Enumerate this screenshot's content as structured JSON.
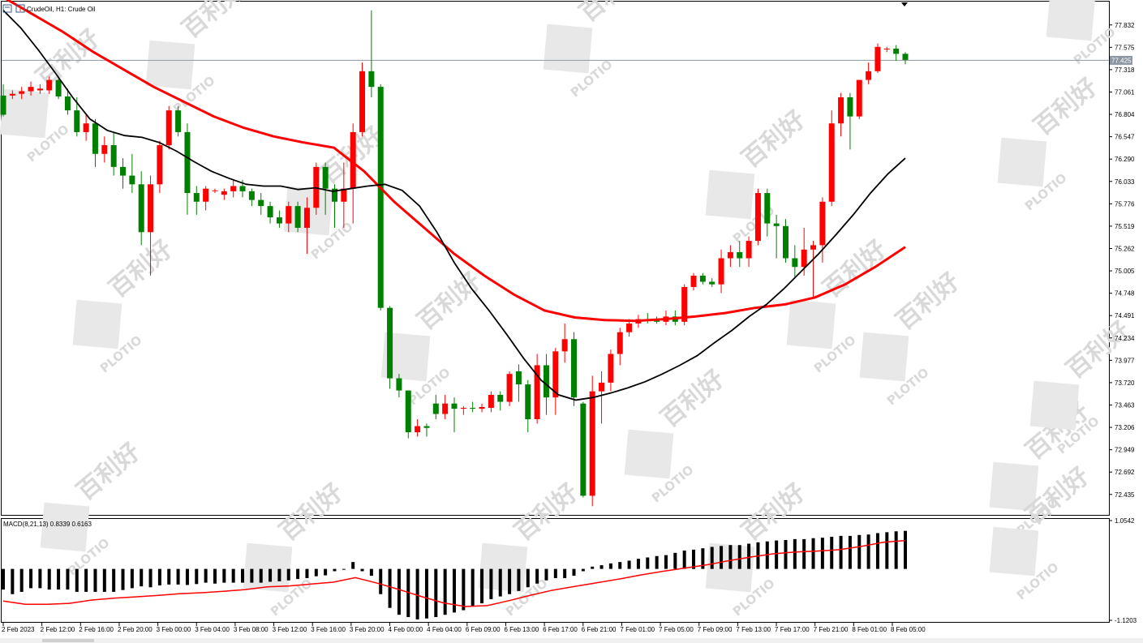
{
  "window": {
    "symbol_label": "CrudeOil, H1:  Crude Oil",
    "indicator_label": "MACD(8,21,13) 0.8339 0.6163"
  },
  "watermark": {
    "logo_text": "PLOTIO",
    "cn_text": "百利好"
  },
  "colors": {
    "bull": "#ff0000",
    "bear": "#008000",
    "ma_fast": "#000000",
    "ma_slow": "#ff0000",
    "macd_hist": "#000000",
    "macd_signal": "#ff0000",
    "grid_line": "#8c97a3"
  },
  "chart_data": [
    {
      "type": "candlestick",
      "title": "CrudeOil, H1: Crude Oil",
      "ylim": [
        72.2,
        78.1
      ],
      "y_ticks": [
        "77.832",
        "77.575",
        "77.318",
        "77.061",
        "76.804",
        "76.547",
        "76.290",
        "76.033",
        "75.776",
        "75.519",
        "75.262",
        "75.005",
        "74.748",
        "74.491",
        "74.234",
        "73.977",
        "73.720",
        "73.463",
        "73.206",
        "72.949",
        "72.692",
        "72.435"
      ],
      "current_price": "77.425",
      "x_ticks": [
        "2 Feb 2023",
        "2 Feb 12:00",
        "2 Feb 16:00",
        "2 Feb 20:00",
        "3 Feb 00:00",
        "3 Feb 04:00",
        "3 Feb 08:00",
        "3 Feb 12:00",
        "3 Feb 16:00",
        "3 Feb 20:00",
        "4 Feb 00:00",
        "4 Feb 04:00",
        "6 Feb 09:00",
        "6 Feb 13:00",
        "6 Feb 17:00",
        "6 Feb 21:00",
        "7 Feb 01:00",
        "7 Feb 05:00",
        "7 Feb 09:00",
        "7 Feb 13:00",
        "7 Feb 17:00",
        "7 Feb 21:00",
        "8 Feb 01:00",
        "8 Feb 05:00"
      ],
      "candles": [
        {
          "o": 77.02,
          "h": 77.15,
          "l": 76.78,
          "c": 76.8
        },
        {
          "o": 77.02,
          "h": 77.08,
          "l": 76.98,
          "c": 77.04
        },
        {
          "o": 77.04,
          "h": 77.12,
          "l": 76.98,
          "c": 77.07
        },
        {
          "o": 77.07,
          "h": 77.18,
          "l": 77.02,
          "c": 77.12
        },
        {
          "o": 77.08,
          "h": 77.15,
          "l": 77.04,
          "c": 77.1
        },
        {
          "o": 77.08,
          "h": 77.24,
          "l": 77.04,
          "c": 77.2
        },
        {
          "o": 77.2,
          "h": 77.22,
          "l": 76.98,
          "c": 77.01
        },
        {
          "o": 77.01,
          "h": 77.1,
          "l": 76.8,
          "c": 76.85
        },
        {
          "o": 76.85,
          "h": 77.0,
          "l": 76.55,
          "c": 76.6
        },
        {
          "o": 76.6,
          "h": 76.8,
          "l": 76.5,
          "c": 76.7
        },
        {
          "o": 76.7,
          "h": 76.75,
          "l": 76.2,
          "c": 76.35
        },
        {
          "o": 76.35,
          "h": 76.55,
          "l": 76.25,
          "c": 76.45
        },
        {
          "o": 76.45,
          "h": 76.6,
          "l": 76.1,
          "c": 76.2
        },
        {
          "o": 76.2,
          "h": 76.3,
          "l": 75.95,
          "c": 76.1
        },
        {
          "o": 76.1,
          "h": 76.35,
          "l": 75.9,
          "c": 76.0
        },
        {
          "o": 76.0,
          "h": 76.15,
          "l": 75.3,
          "c": 75.45
        },
        {
          "o": 75.45,
          "h": 76.1,
          "l": 74.95,
          "c": 76.0
        },
        {
          "o": 76.0,
          "h": 76.5,
          "l": 75.9,
          "c": 76.45
        },
        {
          "o": 76.45,
          "h": 76.9,
          "l": 76.4,
          "c": 76.85
        },
        {
          "o": 76.85,
          "h": 76.9,
          "l": 76.55,
          "c": 76.6
        },
        {
          "o": 76.6,
          "h": 76.7,
          "l": 75.65,
          "c": 75.9
        },
        {
          "o": 75.9,
          "h": 75.98,
          "l": 75.65,
          "c": 75.8
        },
        {
          "o": 75.8,
          "h": 75.98,
          "l": 75.7,
          "c": 75.95
        },
        {
          "o": 75.93,
          "h": 75.95,
          "l": 75.9,
          "c": 75.93
        },
        {
          "o": 75.88,
          "h": 75.95,
          "l": 75.82,
          "c": 75.92
        },
        {
          "o": 75.92,
          "h": 76.05,
          "l": 75.85,
          "c": 75.98
        },
        {
          "o": 75.98,
          "h": 76.05,
          "l": 75.85,
          "c": 75.92
        },
        {
          "o": 75.92,
          "h": 75.95,
          "l": 75.75,
          "c": 75.82
        },
        {
          "o": 75.82,
          "h": 75.9,
          "l": 75.65,
          "c": 75.75
        },
        {
          "o": 75.75,
          "h": 75.8,
          "l": 75.55,
          "c": 75.62
        },
        {
          "o": 75.62,
          "h": 75.7,
          "l": 75.5,
          "c": 75.55
        },
        {
          "o": 75.55,
          "h": 75.8,
          "l": 75.45,
          "c": 75.75
        },
        {
          "o": 75.75,
          "h": 75.8,
          "l": 75.45,
          "c": 75.5
        },
        {
          "o": 75.5,
          "h": 75.85,
          "l": 75.2,
          "c": 75.73
        },
        {
          "o": 75.73,
          "h": 76.25,
          "l": 75.65,
          "c": 76.2
        },
        {
          "o": 76.2,
          "h": 76.25,
          "l": 75.65,
          "c": 75.95
        },
        {
          "o": 75.95,
          "h": 76.0,
          "l": 75.5,
          "c": 75.8
        },
        {
          "o": 75.8,
          "h": 76.25,
          "l": 75.5,
          "c": 75.95
        },
        {
          "o": 75.95,
          "h": 76.7,
          "l": 75.55,
          "c": 76.6
        },
        {
          "o": 76.6,
          "h": 77.4,
          "l": 76.55,
          "c": 77.3
        },
        {
          "o": 77.3,
          "h": 78.0,
          "l": 77.0,
          "c": 77.12
        },
        {
          "o": 77.12,
          "h": 77.15,
          "l": 74.55,
          "c": 74.58
        },
        {
          "o": 74.58,
          "h": 74.6,
          "l": 73.65,
          "c": 73.77
        },
        {
          "o": 73.77,
          "h": 73.82,
          "l": 73.55,
          "c": 73.63
        },
        {
          "o": 73.63,
          "h": 73.63,
          "l": 73.08,
          "c": 73.15
        },
        {
          "o": 73.15,
          "h": 73.3,
          "l": 73.1,
          "c": 73.22
        },
        {
          "o": 73.22,
          "h": 73.25,
          "l": 73.1,
          "c": 73.2
        },
        {
          "o": 73.48,
          "h": 73.58,
          "l": 73.3,
          "c": 73.36
        },
        {
          "o": 73.36,
          "h": 73.58,
          "l": 73.3,
          "c": 73.48
        },
        {
          "o": 73.48,
          "h": 73.55,
          "l": 73.15,
          "c": 73.42
        },
        {
          "o": 73.42,
          "h": 73.45,
          "l": 73.35,
          "c": 73.43
        },
        {
          "o": 73.43,
          "h": 73.5,
          "l": 73.38,
          "c": 73.42
        },
        {
          "o": 73.42,
          "h": 73.48,
          "l": 73.38,
          "c": 73.44
        },
        {
          "o": 73.43,
          "h": 73.62,
          "l": 73.38,
          "c": 73.58
        },
        {
          "o": 73.58,
          "h": 73.62,
          "l": 73.4,
          "c": 73.5
        },
        {
          "o": 73.5,
          "h": 73.85,
          "l": 73.45,
          "c": 73.82
        },
        {
          "o": 73.85,
          "h": 73.93,
          "l": 73.5,
          "c": 73.7
        },
        {
          "o": 73.7,
          "h": 73.75,
          "l": 73.15,
          "c": 73.3
        },
        {
          "o": 73.3,
          "h": 74.05,
          "l": 73.25,
          "c": 73.92
        },
        {
          "o": 73.92,
          "h": 74.05,
          "l": 73.35,
          "c": 73.55
        },
        {
          "o": 73.55,
          "h": 74.12,
          "l": 73.35,
          "c": 74.08
        },
        {
          "o": 74.08,
          "h": 74.4,
          "l": 73.95,
          "c": 74.22
        },
        {
          "o": 74.22,
          "h": 74.3,
          "l": 73.45,
          "c": 73.55
        },
        {
          "o": 73.48,
          "h": 73.5,
          "l": 72.4,
          "c": 72.42
        },
        {
          "o": 72.42,
          "h": 73.8,
          "l": 72.3,
          "c": 73.62
        },
        {
          "o": 73.62,
          "h": 73.85,
          "l": 73.25,
          "c": 73.72
        },
        {
          "o": 73.72,
          "h": 74.1,
          "l": 73.62,
          "c": 74.05
        },
        {
          "o": 74.05,
          "h": 74.35,
          "l": 73.92,
          "c": 74.3
        },
        {
          "o": 74.3,
          "h": 74.45,
          "l": 74.25,
          "c": 74.4
        },
        {
          "o": 74.4,
          "h": 74.5,
          "l": 74.35,
          "c": 74.45
        },
        {
          "o": 74.45,
          "h": 74.52,
          "l": 74.4,
          "c": 74.44
        },
        {
          "o": 74.44,
          "h": 74.48,
          "l": 74.4,
          "c": 74.42
        },
        {
          "o": 74.42,
          "h": 74.55,
          "l": 74.38,
          "c": 74.48
        },
        {
          "o": 74.48,
          "h": 74.55,
          "l": 74.38,
          "c": 74.42
        },
        {
          "o": 74.42,
          "h": 74.85,
          "l": 74.38,
          "c": 74.82
        },
        {
          "o": 74.82,
          "h": 74.98,
          "l": 74.78,
          "c": 74.95
        },
        {
          "o": 74.95,
          "h": 74.98,
          "l": 74.85,
          "c": 74.88
        },
        {
          "o": 74.88,
          "h": 74.92,
          "l": 74.82,
          "c": 74.85
        },
        {
          "o": 74.85,
          "h": 75.25,
          "l": 74.75,
          "c": 75.15
        },
        {
          "o": 75.15,
          "h": 75.3,
          "l": 75.05,
          "c": 75.22
        },
        {
          "o": 75.22,
          "h": 75.35,
          "l": 75.05,
          "c": 75.15
        },
        {
          "o": 75.15,
          "h": 75.4,
          "l": 75.05,
          "c": 75.35
        },
        {
          "o": 75.35,
          "h": 75.95,
          "l": 75.3,
          "c": 75.9
        },
        {
          "o": 75.9,
          "h": 75.95,
          "l": 75.4,
          "c": 75.55
        },
        {
          "o": 75.55,
          "h": 75.65,
          "l": 75.15,
          "c": 75.52
        },
        {
          "o": 75.52,
          "h": 75.6,
          "l": 75.1,
          "c": 75.15
        },
        {
          "o": 75.15,
          "h": 75.3,
          "l": 74.92,
          "c": 75.05
        },
        {
          "o": 75.05,
          "h": 75.5,
          "l": 74.95,
          "c": 75.25
        },
        {
          "o": 75.25,
          "h": 75.35,
          "l": 74.7,
          "c": 75.3
        },
        {
          "o": 75.3,
          "h": 75.85,
          "l": 75.1,
          "c": 75.8
        },
        {
          "o": 75.8,
          "h": 76.85,
          "l": 75.75,
          "c": 76.7
        },
        {
          "o": 76.7,
          "h": 77.05,
          "l": 76.55,
          "c": 77.0
        },
        {
          "o": 77.0,
          "h": 77.05,
          "l": 76.4,
          "c": 76.78
        },
        {
          "o": 76.78,
          "h": 77.2,
          "l": 76.75,
          "c": 77.2
        },
        {
          "o": 77.2,
          "h": 77.4,
          "l": 77.15,
          "c": 77.3
        },
        {
          "o": 77.3,
          "h": 77.62,
          "l": 77.28,
          "c": 77.58
        },
        {
          "o": 77.55,
          "h": 77.58,
          "l": 77.52,
          "c": 77.56
        },
        {
          "o": 77.56,
          "h": 77.6,
          "l": 77.42,
          "c": 77.5
        },
        {
          "o": 77.5,
          "h": 77.52,
          "l": 77.38,
          "c": 77.43
        }
      ],
      "ma_fast": [
        78.0,
        77.8,
        77.55,
        77.28,
        77.0,
        76.75,
        76.62,
        76.56,
        76.54,
        76.48,
        76.38,
        76.26,
        76.15,
        76.07,
        76.0,
        75.98,
        75.98,
        75.94,
        75.96,
        75.92,
        75.95,
        75.98,
        76.0,
        75.93,
        75.75,
        75.45,
        75.1,
        74.8,
        74.55,
        74.28,
        74.0,
        73.75,
        73.58,
        73.52,
        73.55,
        73.6,
        73.66,
        73.73,
        73.82,
        73.92,
        74.03,
        74.18,
        74.32,
        74.48,
        74.62,
        74.8,
        75.0,
        75.2,
        75.42,
        75.65,
        75.9,
        76.12,
        76.3
      ],
      "ma_slow": [
        78.15,
        77.95,
        77.75,
        77.52,
        77.32,
        77.12,
        76.95,
        76.78,
        76.65,
        76.55,
        76.48,
        76.42,
        76.15,
        75.8,
        75.5,
        75.2,
        74.95,
        74.73,
        74.55,
        74.47,
        74.44,
        74.43,
        74.45,
        74.48,
        74.52,
        74.58,
        74.62,
        74.7,
        74.85,
        75.05,
        75.28
      ],
      "macd": {
        "name": "MACD(8,21,13)",
        "main": "0.8339",
        "signal": "0.6163",
        "ylim": [
          -1.1203,
          1.0542
        ],
        "y_ticks": [
          "1.0542",
          "-1.1203"
        ],
        "histogram": [
          -0.45,
          -0.55,
          -0.5,
          -0.42,
          -0.42,
          -0.45,
          -0.45,
          -0.45,
          -0.5,
          -0.5,
          -0.5,
          -0.5,
          -0.5,
          -0.46,
          -0.42,
          -0.38,
          -0.4,
          -0.36,
          -0.34,
          -0.34,
          -0.35,
          -0.33,
          -0.3,
          -0.32,
          -0.3,
          -0.3,
          -0.3,
          -0.3,
          -0.3,
          -0.28,
          -0.27,
          -0.25,
          -0.22,
          -0.2,
          -0.16,
          -0.14,
          -0.05,
          0.0,
          0.15,
          -0.05,
          -0.15,
          -0.55,
          -0.85,
          -1.0,
          -1.05,
          -1.1,
          -1.08,
          -1.05,
          -1.0,
          -0.95,
          -0.9,
          -0.82,
          -0.75,
          -0.66,
          -0.6,
          -0.55,
          -0.48,
          -0.4,
          -0.32,
          -0.25,
          -0.2,
          -0.2,
          -0.15,
          -0.05,
          0.05,
          0.08,
          0.12,
          0.15,
          0.18,
          0.22,
          0.25,
          0.28,
          0.3,
          0.35,
          0.4,
          0.42,
          0.45,
          0.48,
          0.5,
          0.52,
          0.52,
          0.55,
          0.58,
          0.6,
          0.62,
          0.63,
          0.65,
          0.65,
          0.67,
          0.68,
          0.7,
          0.72,
          0.72,
          0.74,
          0.75,
          0.78,
          0.8,
          0.82,
          0.83
        ],
        "signal_line": [
          -0.7,
          -0.77,
          -0.77,
          -0.75,
          -0.68,
          -0.64,
          -0.61,
          -0.58,
          -0.54,
          -0.52,
          -0.49,
          -0.45,
          -0.39,
          -0.37,
          -0.33,
          -0.29,
          -0.19,
          -0.31,
          -0.45,
          -0.6,
          -0.74,
          -0.82,
          -0.8,
          -0.69,
          -0.57,
          -0.46,
          -0.38,
          -0.3,
          -0.22,
          -0.13,
          -0.05,
          0.02,
          0.09,
          0.18,
          0.26,
          0.33,
          0.37,
          0.39,
          0.42,
          0.49,
          0.58,
          0.62
        ]
      }
    }
  ]
}
